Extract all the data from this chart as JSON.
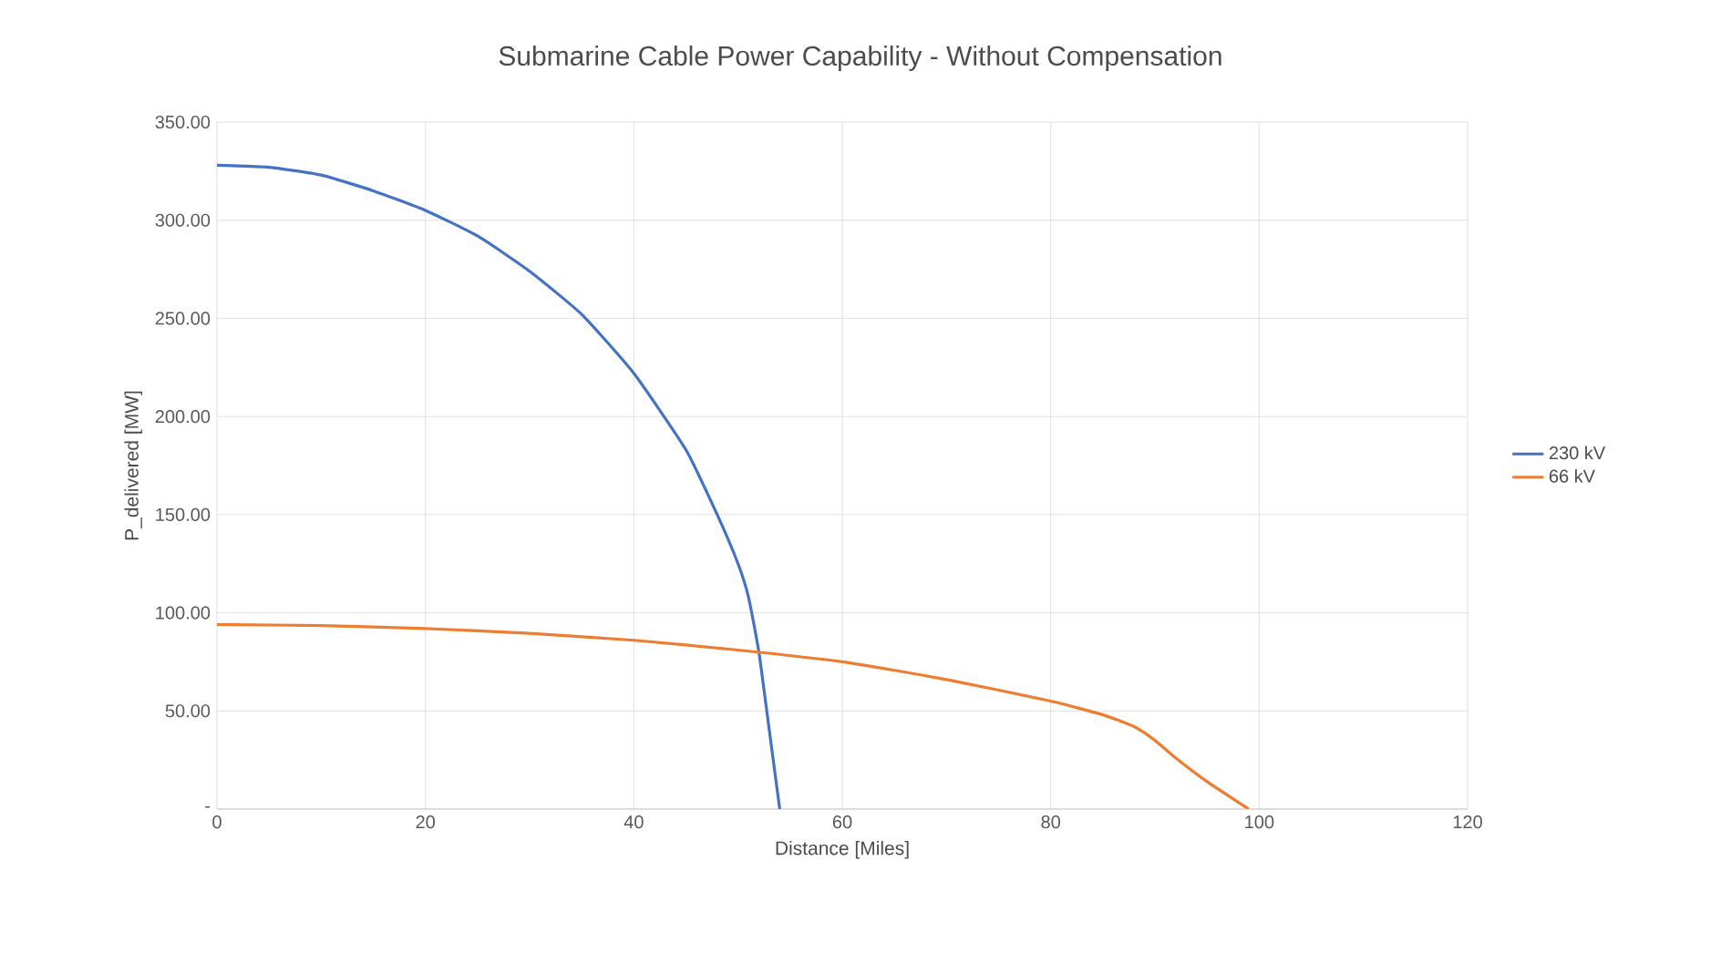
{
  "chart_data": {
    "type": "line",
    "title": "Submarine Cable Power Capability - Without Compensation",
    "xlabel": "Distance [Miles]",
    "ylabel": "P_delivered [MW]",
    "series": [
      {
        "name": "230 kV",
        "color": "#4472c4",
        "x": [
          0,
          5,
          10,
          15,
          20,
          25,
          30,
          35,
          40,
          45,
          48,
          50,
          51,
          52,
          53,
          54
        ],
        "values": [
          328,
          327,
          323,
          315,
          305,
          292,
          274,
          252,
          222,
          183,
          150,
          125,
          108,
          80,
          40,
          0
        ]
      },
      {
        "name": "66 kV",
        "color": "#ed7d31",
        "x": [
          0,
          10,
          20,
          30,
          40,
          50,
          60,
          70,
          80,
          85,
          88,
          90,
          92,
          95,
          99
        ],
        "values": [
          94,
          93.5,
          92,
          89.5,
          86,
          81,
          75,
          66,
          55,
          48,
          42,
          35,
          26,
          14,
          0
        ]
      }
    ],
    "xlim": [
      0,
      120
    ],
    "xticks": [
      0,
      20,
      40,
      60,
      80,
      100,
      120
    ],
    "ylim": [
      0,
      350
    ],
    "yticks": [
      {
        "value": 0,
        "label": "-"
      },
      {
        "value": 50,
        "label": "50.00"
      },
      {
        "value": 100,
        "label": "100.00"
      },
      {
        "value": 150,
        "label": "150.00"
      },
      {
        "value": 200,
        "label": "200.00"
      },
      {
        "value": 250,
        "label": "250.00"
      },
      {
        "value": 300,
        "label": "300.00"
      },
      {
        "value": 350,
        "label": "350.00"
      }
    ],
    "grid": true,
    "legend": "right",
    "marker": "none",
    "line_style": "solid"
  }
}
